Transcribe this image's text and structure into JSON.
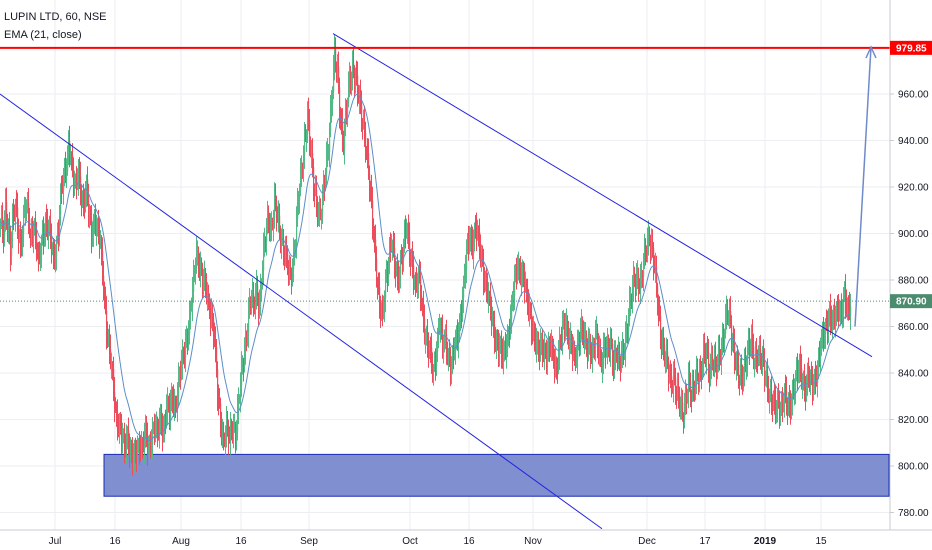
{
  "header": {
    "title": "LUPIN LTD, 60, NSE",
    "indicator": "EMA (21, close)"
  },
  "colors": {
    "up": "#53b987",
    "down": "#eb4d5c",
    "ema": "#5b8fc9",
    "trendline": "#2323e0",
    "resistance": "#ff0000",
    "zone_fill": "#7f8fcf",
    "zone_border": "#1a2db0",
    "arrow": "#6f8ac8",
    "last_price": "#4c8c6e",
    "grid": "#eceef2"
  },
  "chart_data": {
    "type": "candlestick",
    "symbol": "LUPIN LTD",
    "interval": "60",
    "exchange": "NSE",
    "indicator": "EMA (21, close)",
    "ylim": [
      772,
      990
    ],
    "y_ticks": [
      "780.00",
      "800.00",
      "820.00",
      "840.00",
      "860.00",
      "880.00",
      "900.00",
      "920.00",
      "940.00",
      "960.00"
    ],
    "x_ticks": [
      "Jul",
      "16",
      "Aug",
      "16",
      "Sep",
      "Oct",
      "16",
      "Nov",
      "Dec",
      "17",
      "2019",
      "15"
    ],
    "bold_x_ticks": [
      "2019"
    ],
    "resistance": {
      "value": 979.85,
      "label": "979.85"
    },
    "last_price": {
      "value": 870.9,
      "label": "870.90"
    },
    "support_zone": {
      "low": 787,
      "high": 805
    },
    "trendlines": [
      {
        "from": [
          "late Jun",
          960
        ],
        "to": [
          "early Jan",
          773
        ]
      },
      {
        "from": [
          "mid Sep",
          986
        ],
        "to": [
          "late Jan",
          847
        ]
      }
    ],
    "projection_arrow": {
      "from": 860,
      "to": 979.85
    },
    "close_path": [
      [
        0,
        905
      ],
      [
        3,
        898
      ],
      [
        5,
        910
      ],
      [
        8,
        902
      ],
      [
        10,
        895
      ],
      [
        12,
        905
      ],
      [
        15,
        910
      ],
      [
        18,
        900
      ],
      [
        20,
        896
      ],
      [
        22,
        903
      ],
      [
        25,
        912
      ],
      [
        28,
        906
      ],
      [
        30,
        898
      ],
      [
        33,
        905
      ],
      [
        36,
        896
      ],
      [
        38,
        885
      ],
      [
        40,
        892
      ],
      [
        42,
        899
      ],
      [
        45,
        906
      ],
      [
        48,
        902
      ],
      [
        50,
        897
      ],
      [
        53,
        888
      ],
      [
        55,
        894
      ],
      [
        58,
        903
      ],
      [
        60,
        915
      ],
      [
        63,
        922
      ],
      [
        66,
        930
      ],
      [
        68,
        940
      ],
      [
        70,
        936
      ],
      [
        72,
        925
      ],
      [
        75,
        918
      ],
      [
        78,
        928
      ],
      [
        80,
        920
      ],
      [
        83,
        912
      ],
      [
        86,
        918
      ],
      [
        88,
        910
      ],
      [
        91,
        902
      ],
      [
        94,
        906
      ],
      [
        97,
        900
      ],
      [
        100,
        895
      ],
      [
        103,
        880
      ],
      [
        106,
        860
      ],
      [
        109,
        848
      ],
      [
        112,
        838
      ],
      [
        115,
        825
      ],
      [
        118,
        818
      ],
      [
        121,
        812
      ],
      [
        124,
        808
      ],
      [
        127,
        815
      ],
      [
        130,
        806
      ],
      [
        133,
        802
      ],
      [
        136,
        805
      ],
      [
        139,
        811
      ],
      [
        142,
        808
      ],
      [
        145,
        813
      ],
      [
        148,
        806
      ],
      [
        151,
        814
      ],
      [
        154,
        818
      ],
      [
        157,
        812
      ],
      [
        160,
        820
      ],
      [
        163,
        816
      ],
      [
        166,
        826
      ],
      [
        169,
        822
      ],
      [
        172,
        830
      ],
      [
        175,
        826
      ],
      [
        178,
        836
      ],
      [
        181,
        842
      ],
      [
        184,
        850
      ],
      [
        187,
        858
      ],
      [
        190,
        866
      ],
      [
        193,
        878
      ],
      [
        196,
        892
      ],
      [
        199,
        888
      ],
      [
        202,
        880
      ],
      [
        205,
        876
      ],
      [
        208,
        870
      ],
      [
        211,
        866
      ],
      [
        214,
        855
      ],
      [
        217,
        830
      ],
      [
        220,
        820
      ],
      [
        223,
        812
      ],
      [
        226,
        816
      ],
      [
        229,
        810
      ],
      [
        232,
        818
      ],
      [
        235,
        815
      ],
      [
        238,
        826
      ],
      [
        241,
        838
      ],
      [
        244,
        850
      ],
      [
        247,
        862
      ],
      [
        250,
        872
      ],
      [
        253,
        868
      ],
      [
        256,
        876
      ],
      [
        259,
        870
      ],
      [
        262,
        885
      ],
      [
        265,
        898
      ],
      [
        268,
        908
      ],
      [
        271,
        902
      ],
      [
        274,
        912
      ],
      [
        277,
        906
      ],
      [
        280,
        900
      ],
      [
        283,
        895
      ],
      [
        286,
        888
      ],
      [
        289,
        880
      ],
      [
        292,
        886
      ],
      [
        295,
        900
      ],
      [
        298,
        915
      ],
      [
        301,
        925
      ],
      [
        304,
        940
      ],
      [
        307,
        952
      ],
      [
        310,
        935
      ],
      [
        313,
        920
      ],
      [
        316,
        915
      ],
      [
        319,
        908
      ],
      [
        322,
        912
      ],
      [
        325,
        926
      ],
      [
        328,
        940
      ],
      [
        331,
        958
      ],
      [
        334,
        975
      ],
      [
        337,
        968
      ],
      [
        340,
        950
      ],
      [
        343,
        940
      ],
      [
        346,
        952
      ],
      [
        349,
        965
      ],
      [
        352,
        972
      ],
      [
        355,
        968
      ],
      [
        358,
        958
      ],
      [
        361,
        950
      ],
      [
        364,
        945
      ],
      [
        367,
        932
      ],
      [
        370,
        915
      ],
      [
        373,
        900
      ],
      [
        376,
        885
      ],
      [
        379,
        870
      ],
      [
        382,
        862
      ],
      [
        385,
        878
      ],
      [
        388,
        890
      ],
      [
        391,
        898
      ],
      [
        394,
        885
      ],
      [
        397,
        880
      ],
      [
        400,
        888
      ],
      [
        403,
        895
      ],
      [
        406,
        902
      ],
      [
        409,
        892
      ],
      [
        412,
        888
      ],
      [
        415,
        876
      ],
      [
        418,
        880
      ],
      [
        421,
        872
      ],
      [
        424,
        860
      ],
      [
        427,
        852
      ],
      [
        430,
        846
      ],
      [
        433,
        840
      ],
      [
        436,
        852
      ],
      [
        439,
        862
      ],
      [
        442,
        850
      ],
      [
        445,
        855
      ],
      [
        448,
        848
      ],
      [
        451,
        842
      ],
      [
        454,
        850
      ],
      [
        457,
        856
      ],
      [
        460,
        866
      ],
      [
        463,
        876
      ],
      [
        466,
        890
      ],
      [
        469,
        900
      ],
      [
        472,
        896
      ],
      [
        475,
        902
      ],
      [
        478,
        896
      ],
      [
        481,
        890
      ],
      [
        484,
        882
      ],
      [
        487,
        874
      ],
      [
        490,
        866
      ],
      [
        493,
        860
      ],
      [
        496,
        854
      ],
      [
        499,
        850
      ],
      [
        502,
        846
      ],
      [
        505,
        852
      ],
      [
        508,
        858
      ],
      [
        511,
        866
      ],
      [
        514,
        878
      ],
      [
        517,
        888
      ],
      [
        520,
        884
      ],
      [
        523,
        880
      ],
      [
        526,
        872
      ],
      [
        529,
        868
      ],
      [
        532,
        860
      ],
      [
        535,
        852
      ],
      [
        538,
        848
      ],
      [
        541,
        854
      ],
      [
        544,
        850
      ],
      [
        547,
        846
      ],
      [
        550,
        852
      ],
      [
        553,
        848
      ],
      [
        556,
        842
      ],
      [
        559,
        850
      ],
      [
        562,
        858
      ],
      [
        565,
        864
      ],
      [
        568,
        856
      ],
      [
        571,
        850
      ],
      [
        574,
        845
      ],
      [
        577,
        852
      ],
      [
        580,
        860
      ],
      [
        583,
        855
      ],
      [
        586,
        850
      ],
      [
        589,
        854
      ],
      [
        592,
        848
      ],
      [
        595,
        855
      ],
      [
        598,
        850
      ],
      [
        601,
        846
      ],
      [
        604,
        852
      ],
      [
        607,
        848
      ],
      [
        610,
        852
      ],
      [
        613,
        846
      ],
      [
        616,
        850
      ],
      [
        619,
        842
      ],
      [
        622,
        848
      ],
      [
        625,
        856
      ],
      [
        628,
        865
      ],
      [
        631,
        872
      ],
      [
        634,
        880
      ],
      [
        637,
        882
      ],
      [
        640,
        878
      ],
      [
        643,
        885
      ],
      [
        646,
        895
      ],
      [
        649,
        900
      ],
      [
        652,
        892
      ],
      [
        655,
        880
      ],
      [
        658,
        866
      ],
      [
        661,
        856
      ],
      [
        664,
        848
      ],
      [
        667,
        842
      ],
      [
        670,
        836
      ],
      [
        673,
        840
      ],
      [
        676,
        832
      ],
      [
        679,
        826
      ],
      [
        682,
        822
      ],
      [
        685,
        830
      ],
      [
        688,
        836
      ],
      [
        691,
        828
      ],
      [
        694,
        836
      ],
      [
        697,
        842
      ],
      [
        700,
        838
      ],
      [
        703,
        846
      ],
      [
        706,
        850
      ],
      [
        709,
        842
      ],
      [
        712,
        846
      ],
      [
        715,
        840
      ],
      [
        718,
        848
      ],
      [
        721,
        852
      ],
      [
        724,
        858
      ],
      [
        727,
        866
      ],
      [
        730,
        862
      ],
      [
        733,
        852
      ],
      [
        736,
        842
      ],
      [
        739,
        836
      ],
      [
        742,
        840
      ],
      [
        745,
        846
      ],
      [
        748,
        850
      ],
      [
        751,
        852
      ],
      [
        754,
        846
      ],
      [
        757,
        850
      ],
      [
        760,
        846
      ],
      [
        763,
        842
      ],
      [
        766,
        838
      ],
      [
        769,
        832
      ],
      [
        772,
        826
      ],
      [
        775,
        824
      ],
      [
        778,
        828
      ],
      [
        781,
        826
      ],
      [
        784,
        830
      ],
      [
        787,
        824
      ],
      [
        790,
        828
      ],
      [
        793,
        834
      ],
      [
        796,
        838
      ],
      [
        799,
        842
      ],
      [
        802,
        838
      ],
      [
        805,
        834
      ],
      [
        808,
        838
      ],
      [
        811,
        834
      ],
      [
        814,
        838
      ],
      [
        817,
        842
      ],
      [
        820,
        850
      ],
      [
        823,
        856
      ],
      [
        826,
        862
      ],
      [
        829,
        866
      ],
      [
        832,
        860
      ],
      [
        835,
        864
      ],
      [
        838,
        870
      ],
      [
        841,
        866
      ],
      [
        844,
        872
      ],
      [
        847,
        866
      ],
      [
        850,
        871
      ]
    ]
  }
}
